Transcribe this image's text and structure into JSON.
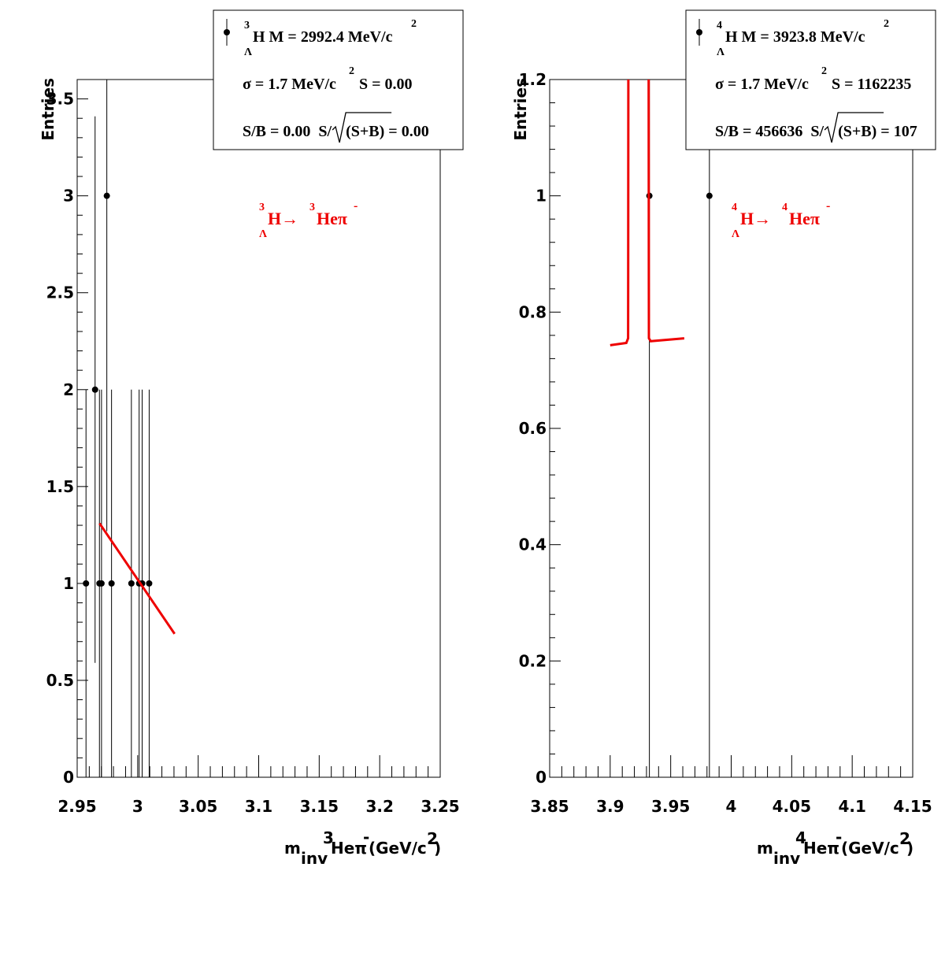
{
  "chart_data": [
    {
      "type": "scatter",
      "xlabel": {
        "m": "m",
        "sub": "inv",
        "iso": "3",
        "nucleus": "Heπ",
        "charge": "-",
        "unit": "(GeV/c",
        "unit_sup": "2",
        "close": ")"
      },
      "ylabel": "Entries",
      "xlim": [
        2.95,
        3.25
      ],
      "ylim": [
        0,
        3.6
      ],
      "x_ticks": [
        "2.95",
        "3",
        "3.05",
        "3.1",
        "3.15",
        "3.2",
        "3.25"
      ],
      "y_ticks": [
        "0",
        "0.5",
        "1",
        "1.5",
        "2",
        "2.5",
        "3",
        "3.5"
      ],
      "points": [
        {
          "x": 2.9573,
          "y": 1,
          "err": 1
        },
        {
          "x": 2.9648,
          "y": 2,
          "err": 1.41
        },
        {
          "x": 2.9684,
          "y": 1,
          "err": 1
        },
        {
          "x": 2.9701,
          "y": 1,
          "err": 1
        },
        {
          "x": 2.9745,
          "y": 3,
          "err": 1.73
        },
        {
          "x": 2.9784,
          "y": 1,
          "err": 1
        },
        {
          "x": 2.9948,
          "y": 1,
          "err": 1
        },
        {
          "x": 3.0012,
          "y": 1,
          "err": 1
        },
        {
          "x": 3.0037,
          "y": 1,
          "err": 1
        },
        {
          "x": 3.0095,
          "y": 1,
          "err": 1
        }
      ],
      "fit": {
        "x": [
          2.9685,
          3.0305
        ],
        "y": [
          1.31,
          0.74
        ]
      },
      "legend": {
        "iso": "3",
        "hyper": "Λ",
        "line1": "H M = 2992.4 MeV/c",
        "line1_sup": "2",
        "line2a": "σ = 1.7 MeV/c",
        "line2_sup": "2",
        "line2b": "S = 0.00",
        "line3a": "S/B = 0.00  S/",
        "line3b": "(S+B)",
        "line3c": " = 0.00"
      },
      "decay": {
        "iso1": "3",
        "sub1": "Λ",
        "text1": "H→",
        "iso2": "3",
        "text2": "Heπ",
        "charge": "-"
      },
      "colors": {
        "fit": "#ee0000",
        "decay_label": "#ee0000",
        "points": "#000000"
      }
    },
    {
      "type": "scatter",
      "xlabel": {
        "m": "m",
        "sub": "inv",
        "iso": "4",
        "nucleus": "Heπ",
        "charge": "-",
        "unit": "(GeV/c",
        "unit_sup": "2",
        "close": ")"
      },
      "ylabel": "Entries",
      "xlim": [
        3.85,
        4.15
      ],
      "ylim": [
        0,
        1.2
      ],
      "x_ticks": [
        "3.85",
        "3.9",
        "3.95",
        "4",
        "4.05",
        "4.1",
        "4.15"
      ],
      "y_ticks": [
        "0",
        "0.2",
        "0.4",
        "0.6",
        "0.8",
        "1",
        "1.2"
      ],
      "points": [
        {
          "x": 3.9324,
          "y": 1,
          "err": 1
        },
        {
          "x": 3.982,
          "y": 1,
          "err": 1
        }
      ],
      "fit": {
        "x": [
          3.9,
          3.9133,
          3.9148,
          3.9149,
          3.915,
          null,
          3.9318,
          3.9319,
          3.932,
          3.9335,
          3.9612
        ],
        "y": [
          0.743,
          0.747,
          0.755,
          0.86,
          1.2,
          null,
          1.2,
          0.86,
          0.755,
          0.75,
          0.755
        ]
      },
      "legend": {
        "iso": "4",
        "hyper": "Λ",
        "line1": "H M = 3923.8 MeV/c",
        "line1_sup": "2",
        "line2a": "σ = 1.7 MeV/c",
        "line2_sup": "2",
        "line2b": "S = 1162235",
        "line3a": "S/B = 456636  S/",
        "line3b": "(S+B)",
        "line3c": " = 107"
      },
      "decay": {
        "iso1": "4",
        "sub1": "Λ",
        "text1": "H→",
        "iso2": "4",
        "text2": "Heπ",
        "charge": "-"
      },
      "colors": {
        "fit": "#ee0000",
        "decay_label": "#ee0000",
        "points": "#000000"
      }
    }
  ]
}
